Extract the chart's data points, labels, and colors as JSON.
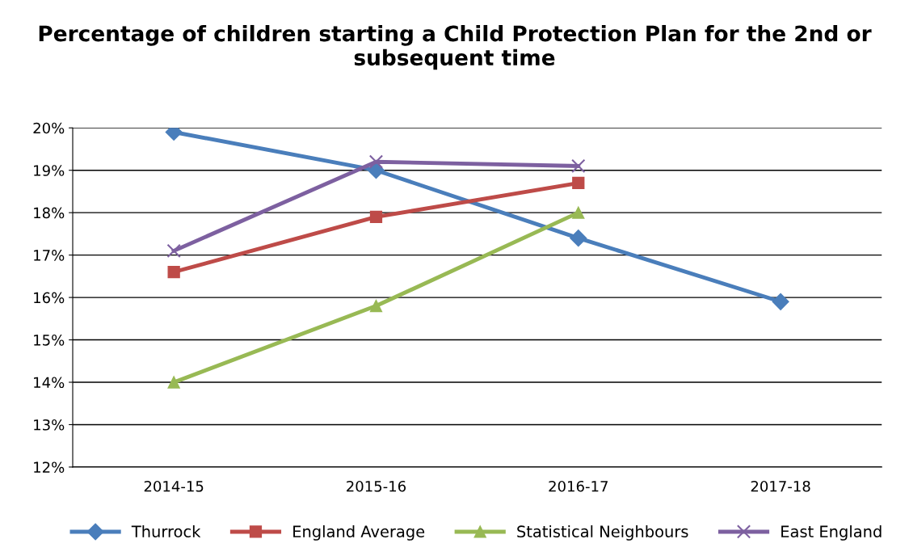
{
  "chart_data": {
    "type": "line",
    "title": "Percentage of children starting a Child Protection Plan for the 2nd or subsequent time",
    "categories": [
      "2014-15",
      "2015-16",
      "2016-17",
      "2017-18"
    ],
    "series": [
      {
        "name": "Thurrock",
        "color": "#4a7ebb",
        "marker": "diamond",
        "values": [
          19.9,
          19.0,
          17.4,
          15.9
        ]
      },
      {
        "name": "England Average",
        "color": "#be4b48",
        "marker": "square",
        "values": [
          16.6,
          17.9,
          18.7,
          null
        ]
      },
      {
        "name": "Statistical Neighbours",
        "color": "#98b954",
        "marker": "triangle",
        "values": [
          14.0,
          15.8,
          18.0,
          null
        ]
      },
      {
        "name": "East England",
        "color": "#7d60a0",
        "marker": "cross",
        "values": [
          17.1,
          19.2,
          19.1,
          null
        ]
      }
    ],
    "ylim": [
      12,
      20
    ],
    "yticks": [
      {
        "value": 12,
        "label": "12%"
      },
      {
        "value": 13,
        "label": "13%"
      },
      {
        "value": 14,
        "label": "14%"
      },
      {
        "value": 15,
        "label": "15%"
      },
      {
        "value": 16,
        "label": "16%"
      },
      {
        "value": 17,
        "label": "17%"
      },
      {
        "value": 18,
        "label": "18%"
      },
      {
        "value": 19,
        "label": "19%"
      },
      {
        "value": 20,
        "label": "20%"
      }
    ],
    "grid": "y",
    "legend": "bottom",
    "line_style": "solid"
  }
}
